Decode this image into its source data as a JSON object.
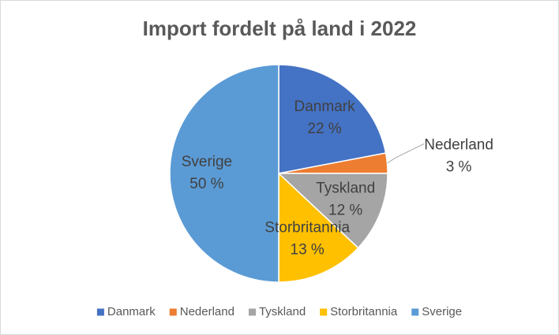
{
  "chart_data": {
    "type": "pie",
    "title": "Import fordelt på land i 2022",
    "categories": [
      "Danmark",
      "Nederland",
      "Tyskland",
      "Storbritannia",
      "Sverige"
    ],
    "values": [
      22,
      3,
      12,
      13,
      50
    ],
    "value_labels": [
      "22 %",
      "3 %",
      "12 %",
      "13 %",
      "50 %"
    ],
    "colors": [
      "#4472c4",
      "#ed7d31",
      "#a5a5a5",
      "#ffc000",
      "#5b9bd5"
    ],
    "legend": "bottom"
  }
}
